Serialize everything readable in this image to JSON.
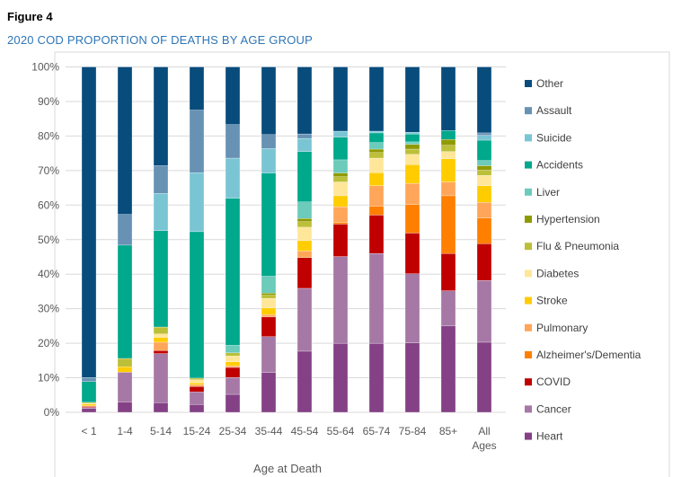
{
  "figure_label": "Figure 4",
  "chart_data": {
    "type": "bar",
    "stacked": true,
    "title": "2020 COD PROPORTION OF DEATHS BY AGE GROUP",
    "xlabel": "Age at Death",
    "ylabel": "",
    "ylim": [
      0,
      100
    ],
    "yticks": [
      "0%",
      "10%",
      "20%",
      "30%",
      "40%",
      "50%",
      "60%",
      "70%",
      "80%",
      "90%",
      "100%"
    ],
    "grid": true,
    "legend_position": "right",
    "categories": [
      "< 1",
      "1-4",
      "5-14",
      "15-24",
      "25-34",
      "35-44",
      "45-54",
      "55-64",
      "65-74",
      "75-84",
      "85+",
      "All Ages"
    ],
    "series": [
      {
        "name": "Heart",
        "color": "#844185",
        "values": [
          1.1,
          3.0,
          2.8,
          2.3,
          5.2,
          11.5,
          17.7,
          20.0,
          20.0,
          20.1,
          25.0,
          20.3
        ]
      },
      {
        "name": "Cancer",
        "color": "#a678a6",
        "values": [
          0.3,
          8.6,
          14.2,
          3.6,
          4.9,
          10.4,
          18.2,
          25.1,
          26.0,
          20.0,
          10.2,
          17.9
        ]
      },
      {
        "name": "COVID",
        "color": "#c00000",
        "values": [
          0.3,
          0,
          0.9,
          1.6,
          2.9,
          5.7,
          8.9,
          9.4,
          11.1,
          11.8,
          10.8,
          10.6
        ]
      },
      {
        "name": "Alzheimer's/Dementia",
        "color": "#ff7f00",
        "values": [
          0,
          0,
          0,
          0,
          0,
          0,
          0,
          0.5,
          2.6,
          8.3,
          16.7,
          7.5
        ]
      },
      {
        "name": "Pulmonary",
        "color": "#ffa65a",
        "values": [
          0.2,
          0,
          2.4,
          0.5,
          0.5,
          0.7,
          1.9,
          4.5,
          5.9,
          6.1,
          4.0,
          4.5
        ]
      },
      {
        "name": "Stroke",
        "color": "#ffcc00",
        "values": [
          0.5,
          1.6,
          1.4,
          0.5,
          1.1,
          1.9,
          3.0,
          3.2,
          3.8,
          5.4,
          6.7,
          4.8
        ]
      },
      {
        "name": "Diabetes",
        "color": "#ffe699",
        "values": [
          0.2,
          0,
          1.0,
          0.9,
          1.7,
          2.8,
          3.9,
          4.0,
          4.2,
          3.0,
          2.1,
          3.0
        ]
      },
      {
        "name": "Flu & Pneumonia",
        "color": "#bcbf38",
        "values": [
          0.3,
          2.4,
          2.0,
          0.5,
          0.9,
          0.9,
          1.6,
          1.5,
          1.6,
          1.5,
          1.8,
          1.5
        ]
      },
      {
        "name": "Hypertension",
        "color": "#8f9a00",
        "values": [
          0,
          0,
          0,
          0,
          0,
          0.6,
          0.9,
          1.1,
          1.0,
          1.4,
          1.7,
          1.3
        ]
      },
      {
        "name": "Liver",
        "color": "#6ccbbb",
        "values": [
          0,
          0,
          0,
          0,
          2.2,
          4.9,
          4.8,
          3.8,
          1.9,
          0.7,
          0,
          1.5
        ]
      },
      {
        "name": "Accidents",
        "color": "#00a88c",
        "values": [
          6.0,
          32.8,
          27.9,
          42.4,
          42.6,
          29.9,
          14.6,
          6.6,
          2.8,
          2.3,
          2.6,
          5.9
        ]
      },
      {
        "name": "Suicide",
        "color": "#7ac5d4",
        "values": [
          0,
          0,
          10.8,
          17.1,
          11.6,
          7.1,
          3.8,
          1.7,
          0.5,
          0.5,
          0,
          1.4
        ]
      },
      {
        "name": "Assault",
        "color": "#6792b4",
        "values": [
          1.2,
          8.9,
          8.0,
          18.1,
          9.7,
          4.0,
          1.3,
          0,
          0,
          0,
          0,
          0.7
        ]
      },
      {
        "name": "Other",
        "color": "#084c7c",
        "values": [
          89.9,
          42.7,
          28.6,
          12.5,
          16.7,
          19.6,
          19.4,
          18.6,
          18.6,
          18.9,
          18.4,
          19.1
        ]
      }
    ]
  }
}
